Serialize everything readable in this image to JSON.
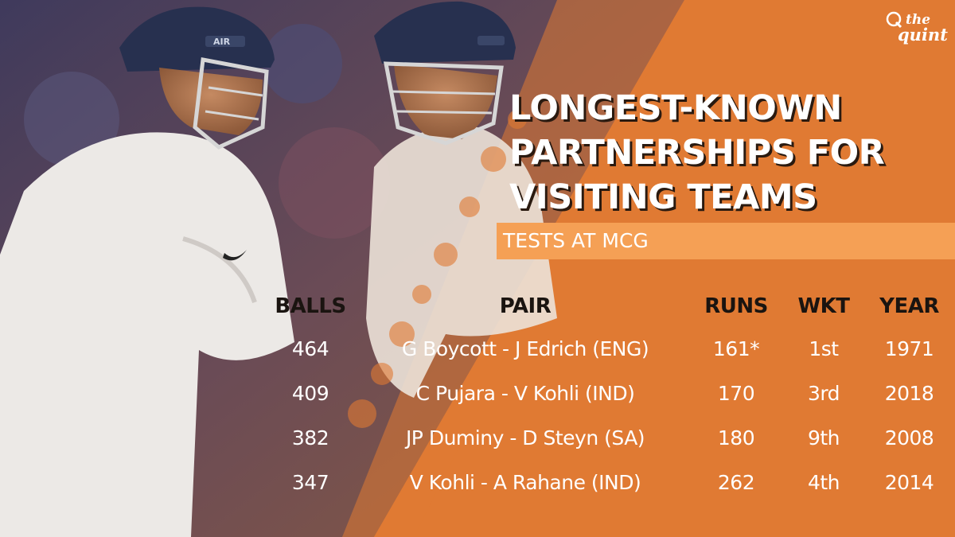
{
  "brand": {
    "the": "the",
    "quint": "quint"
  },
  "headline": {
    "line1": "LONGEST-KNOWN",
    "line2": "PARTNERSHIPS FOR",
    "line3": "VISITING TEAMS"
  },
  "subtitle": "TESTS AT MCG",
  "photo": {
    "helmet_text": "AIR"
  },
  "table": {
    "headers": {
      "balls": "BALLS",
      "pair": "PAIR",
      "runs": "RUNS",
      "wkt": "WKT",
      "year": "YEAR"
    },
    "rows": [
      {
        "balls": "464",
        "pair": "G Boycott - J Edrich (ENG)",
        "runs": "161*",
        "wkt": "1st",
        "year": "1971"
      },
      {
        "balls": "409",
        "pair": "C Pujara - V Kohli (IND)",
        "runs": "170",
        "wkt": "3rd",
        "year": "2018"
      },
      {
        "balls": "382",
        "pair": "JP Duminy - D Steyn (SA)",
        "runs": "180",
        "wkt": "9th",
        "year": "2008"
      },
      {
        "balls": "347",
        "pair": "V Kohli - A Rahane (IND)",
        "runs": "262",
        "wkt": "4th",
        "year": "2014"
      }
    ]
  },
  "colors": {
    "background": "#e07a33",
    "subtitle_band": "#f5a055",
    "header_text": "#1a1410",
    "body_text": "#ffffff"
  }
}
